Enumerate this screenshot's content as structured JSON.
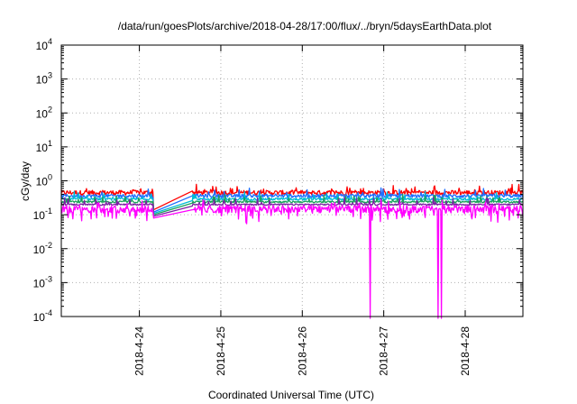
{
  "chart_data": {
    "type": "line",
    "title": "/data/run/goesPlots/archive/2018-04-28/17:00/flux/../bryn/5daysEarthData.plot",
    "xlabel": "Coordinated Universal Time (UTC)",
    "ylabel": "cGy/day",
    "x_range": [
      "2018-04-23T01:00",
      "2018-04-28T17:00"
    ],
    "x_ticks": [
      "2018-4-24",
      "2018-4-25",
      "2018-4-26",
      "2018-4-27",
      "2018-4-28"
    ],
    "y_scale": "log",
    "ylim": [
      0.0001,
      10000
    ],
    "y_ticks": [
      {
        "base": "10",
        "exp": "-4",
        "value": 0.0001
      },
      {
        "base": "10",
        "exp": "-3",
        "value": 0.001
      },
      {
        "base": "10",
        "exp": "-2",
        "value": 0.01
      },
      {
        "base": "10",
        "exp": "-1",
        "value": 0.1
      },
      {
        "base": "10",
        "exp": "0",
        "value": 1
      },
      {
        "base": "10",
        "exp": "1",
        "value": 10
      },
      {
        "base": "10",
        "exp": "2",
        "value": 100
      },
      {
        "base": "10",
        "exp": "3",
        "value": 1000
      },
      {
        "base": "10",
        "exp": "4",
        "value": 10000
      }
    ],
    "grid": true,
    "data_gap": [
      "2018-04-24T04:00",
      "2018-04-24T15:30"
    ],
    "dropouts": [
      "2018-04-26T20:00",
      "2018-04-27T16:00",
      "2018-04-27T17:00"
    ],
    "series": [
      {
        "color": "#ff0000",
        "level": 0.45,
        "noise": 0.16,
        "gap_start": 0.14,
        "gap_end": 0.5
      },
      {
        "color": "#1e6fff",
        "level": 0.36,
        "noise": 0.12,
        "gap_start": 0.12,
        "gap_end": 0.36
      },
      {
        "color": "#00bcd4",
        "level": 0.29,
        "noise": 0.08,
        "gap_start": 0.11,
        "gap_end": 0.26
      },
      {
        "color": "#1aa05a",
        "level": 0.24,
        "noise": 0.06,
        "gap_start": 0.1,
        "gap_end": 0.22
      },
      {
        "color": "#7a1fa2",
        "level": 0.2,
        "noise": 0.05,
        "gap_start": 0.09,
        "gap_end": 0.18
      },
      {
        "color": "#ff00ff",
        "level": 0.15,
        "noise": 0.25,
        "gap_start": 0.08,
        "gap_end": 0.14
      }
    ]
  }
}
